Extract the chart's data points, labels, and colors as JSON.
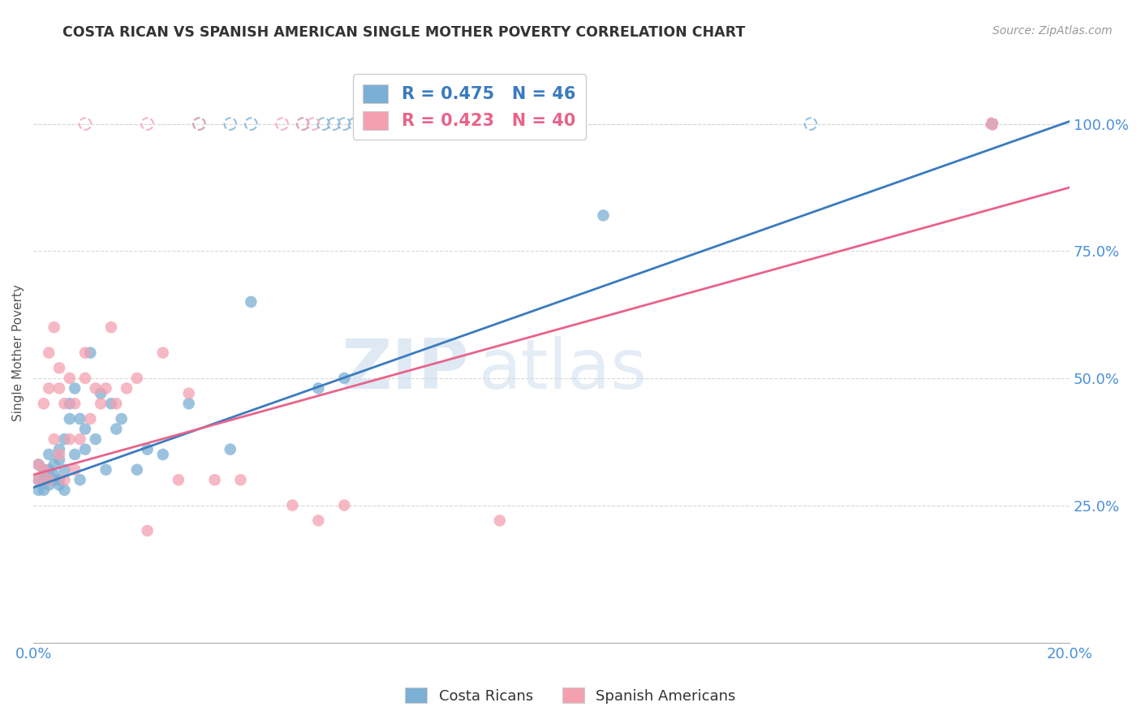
{
  "title": "COSTA RICAN VS SPANISH AMERICAN SINGLE MOTHER POVERTY CORRELATION CHART",
  "source": "Source: ZipAtlas.com",
  "ylabel": "Single Mother Poverty",
  "right_yticks": [
    25.0,
    50.0,
    75.0,
    100.0
  ],
  "blue_color": "#7bafd4",
  "pink_color": "#f4a0b0",
  "blue_line_color": "#3a7bbf",
  "pink_line_color": "#e8638a",
  "background_color": "#ffffff",
  "grid_color": "#d8d8d8",
  "title_color": "#333333",
  "axis_label_color": "#4a90d9",
  "watermark_zip": "ZIP",
  "watermark_atlas": "atlas",
  "xlim": [
    0.0,
    0.2
  ],
  "ylim": [
    -0.02,
    1.12
  ],
  "blue_line_x0": 0.0,
  "blue_line_y0": 0.285,
  "blue_line_x1": 0.2,
  "blue_line_y1": 1.005,
  "pink_line_x0": 0.0,
  "pink_line_x1": 0.2,
  "pink_line_y0": 0.31,
  "pink_line_y1": 0.875,
  "costa_rica_x": [
    0.001,
    0.001,
    0.001,
    0.002,
    0.002,
    0.002,
    0.002,
    0.003,
    0.003,
    0.003,
    0.003,
    0.004,
    0.004,
    0.004,
    0.005,
    0.005,
    0.005,
    0.005,
    0.006,
    0.006,
    0.006,
    0.007,
    0.007,
    0.008,
    0.008,
    0.009,
    0.009,
    0.01,
    0.01,
    0.011,
    0.012,
    0.013,
    0.014,
    0.015,
    0.016,
    0.017,
    0.02,
    0.022,
    0.025,
    0.03,
    0.038,
    0.042,
    0.055,
    0.06,
    0.11,
    0.185
  ],
  "costa_rica_y": [
    0.33,
    0.3,
    0.28,
    0.3,
    0.32,
    0.28,
    0.31,
    0.3,
    0.32,
    0.29,
    0.35,
    0.31,
    0.33,
    0.3,
    0.34,
    0.36,
    0.3,
    0.29,
    0.28,
    0.38,
    0.32,
    0.42,
    0.45,
    0.35,
    0.48,
    0.42,
    0.3,
    0.4,
    0.36,
    0.55,
    0.38,
    0.47,
    0.32,
    0.45,
    0.4,
    0.42,
    0.32,
    0.36,
    0.35,
    0.45,
    0.36,
    0.65,
    0.48,
    0.5,
    0.82,
    1.0
  ],
  "spanish_american_x": [
    0.001,
    0.001,
    0.002,
    0.002,
    0.003,
    0.003,
    0.003,
    0.004,
    0.004,
    0.005,
    0.005,
    0.005,
    0.006,
    0.006,
    0.007,
    0.007,
    0.008,
    0.008,
    0.009,
    0.01,
    0.01,
    0.011,
    0.012,
    0.013,
    0.014,
    0.015,
    0.016,
    0.018,
    0.02,
    0.022,
    0.025,
    0.028,
    0.03,
    0.035,
    0.04,
    0.05,
    0.055,
    0.06,
    0.09,
    0.185
  ],
  "spanish_american_y": [
    0.33,
    0.3,
    0.45,
    0.32,
    0.55,
    0.48,
    0.3,
    0.6,
    0.38,
    0.52,
    0.48,
    0.35,
    0.45,
    0.3,
    0.5,
    0.38,
    0.45,
    0.32,
    0.38,
    0.5,
    0.55,
    0.42,
    0.48,
    0.45,
    0.48,
    0.6,
    0.45,
    0.48,
    0.5,
    0.2,
    0.55,
    0.3,
    0.47,
    0.3,
    0.3,
    0.25,
    0.22,
    0.25,
    0.22,
    1.0
  ],
  "top_row_cr_x": [
    0.032,
    0.038,
    0.042,
    0.052,
    0.056,
    0.058,
    0.06,
    0.062,
    0.15
  ],
  "top_row_cr_y": [
    1.0,
    1.0,
    1.0,
    1.0,
    1.0,
    1.0,
    1.0,
    1.0,
    1.0
  ],
  "top_row_sa_x": [
    0.01,
    0.022,
    0.032,
    0.048,
    0.052,
    0.054,
    0.185
  ],
  "top_row_sa_y": [
    1.0,
    1.0,
    1.0,
    1.0,
    1.0,
    1.0,
    1.0
  ]
}
